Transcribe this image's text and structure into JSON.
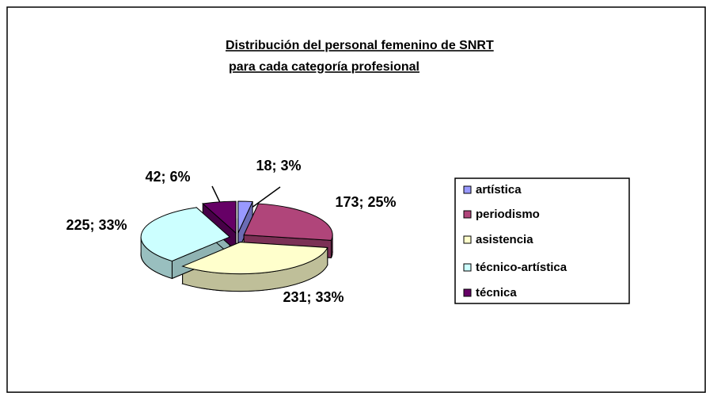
{
  "chart_data": {
    "type": "pie3d",
    "title": [
      "Distribución del personal femenino de SNRT",
      "para cada categoría profesional"
    ],
    "categories": [
      "artística",
      "periodismo",
      "asistencia",
      "técnico-artística",
      "técnica"
    ],
    "values": [
      18,
      173,
      231,
      225,
      42
    ],
    "value_labels": [
      "18; 3%",
      "173; 25%",
      "231; 33%",
      "225; 33%",
      "42; 6%"
    ],
    "colors": [
      "#9999ff",
      "#b0457a",
      "#ffffcc",
      "#ccffff",
      "#660066"
    ],
    "legend": "right"
  }
}
